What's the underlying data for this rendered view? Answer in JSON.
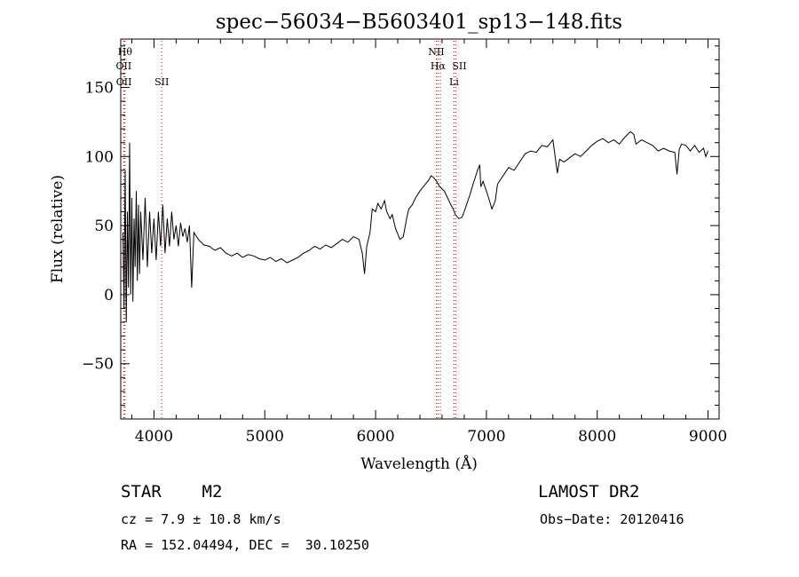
{
  "chart_data": {
    "type": "line",
    "title": "spec−56034−B5603401_sp13−148.fits",
    "xlabel": "Wavelength (Å)",
    "ylabel": "Flux (relative)",
    "xlim": [
      3700,
      9100
    ],
    "ylim": [
      -90,
      185
    ],
    "x_ticks": [
      4000,
      5000,
      6000,
      7000,
      8000,
      9000
    ],
    "x_tick_labels": [
      "4000",
      "5000",
      "6000",
      "7000",
      "8000",
      "9000"
    ],
    "y_ticks": [
      -50,
      0,
      50,
      100,
      150
    ],
    "y_tick_labels": [
      "−50",
      "0",
      "50",
      "100",
      "150"
    ],
    "grid": false,
    "line_color": "#000000",
    "marker_color": "#cc0000",
    "series": [
      {
        "values": [
          [
            3720,
            45
          ],
          [
            3730,
            -10
          ],
          [
            3740,
            90
          ],
          [
            3750,
            -20
          ],
          [
            3760,
            60
          ],
          [
            3770,
            5
          ],
          [
            3780,
            110
          ],
          [
            3790,
            0
          ],
          [
            3800,
            70
          ],
          [
            3810,
            -5
          ],
          [
            3820,
            55
          ],
          [
            3830,
            20
          ],
          [
            3840,
            75
          ],
          [
            3850,
            10
          ],
          [
            3860,
            65
          ],
          [
            3870,
            15
          ],
          [
            3880,
            60
          ],
          [
            3900,
            25
          ],
          [
            3920,
            70
          ],
          [
            3940,
            20
          ],
          [
            3960,
            60
          ],
          [
            3980,
            30
          ],
          [
            4000,
            55
          ],
          [
            4020,
            25
          ],
          [
            4040,
            60
          ],
          [
            4060,
            35
          ],
          [
            4080,
            65
          ],
          [
            4100,
            30
          ],
          [
            4120,
            55
          ],
          [
            4140,
            35
          ],
          [
            4160,
            60
          ],
          [
            4180,
            40
          ],
          [
            4200,
            50
          ],
          [
            4220,
            35
          ],
          [
            4240,
            52
          ],
          [
            4260,
            42
          ],
          [
            4280,
            48
          ],
          [
            4300,
            38
          ],
          [
            4320,
            50
          ],
          [
            4340,
            5
          ],
          [
            4360,
            45
          ],
          [
            4400,
            40
          ],
          [
            4450,
            36
          ],
          [
            4500,
            35
          ],
          [
            4550,
            32
          ],
          [
            4600,
            34
          ],
          [
            4650,
            30
          ],
          [
            4700,
            28
          ],
          [
            4750,
            30
          ],
          [
            4800,
            27
          ],
          [
            4850,
            29
          ],
          [
            4900,
            28
          ],
          [
            4950,
            26
          ],
          [
            5000,
            25
          ],
          [
            5050,
            27
          ],
          [
            5100,
            24
          ],
          [
            5150,
            26
          ],
          [
            5200,
            23
          ],
          [
            5250,
            25
          ],
          [
            5300,
            27
          ],
          [
            5350,
            30
          ],
          [
            5400,
            32
          ],
          [
            5450,
            35
          ],
          [
            5500,
            33
          ],
          [
            5550,
            36
          ],
          [
            5600,
            34
          ],
          [
            5650,
            37
          ],
          [
            5700,
            40
          ],
          [
            5750,
            38
          ],
          [
            5800,
            42
          ],
          [
            5850,
            40
          ],
          [
            5880,
            30
          ],
          [
            5900,
            15
          ],
          [
            5920,
            35
          ],
          [
            5950,
            45
          ],
          [
            5970,
            62
          ],
          [
            6000,
            60
          ],
          [
            6020,
            66
          ],
          [
            6050,
            62
          ],
          [
            6080,
            68
          ],
          [
            6100,
            60
          ],
          [
            6130,
            55
          ],
          [
            6150,
            58
          ],
          [
            6180,
            48
          ],
          [
            6200,
            44
          ],
          [
            6220,
            40
          ],
          [
            6250,
            42
          ],
          [
            6280,
            55
          ],
          [
            6300,
            62
          ],
          [
            6330,
            65
          ],
          [
            6360,
            70
          ],
          [
            6400,
            75
          ],
          [
            6450,
            80
          ],
          [
            6480,
            83
          ],
          [
            6500,
            86
          ],
          [
            6520,
            85
          ],
          [
            6550,
            82
          ],
          [
            6580,
            78
          ],
          [
            6620,
            75
          ],
          [
            6650,
            70
          ],
          [
            6680,
            65
          ],
          [
            6700,
            62
          ],
          [
            6720,
            58
          ],
          [
            6750,
            55
          ],
          [
            6780,
            56
          ],
          [
            6800,
            60
          ],
          [
            6820,
            65
          ],
          [
            6850,
            72
          ],
          [
            6880,
            80
          ],
          [
            6900,
            85
          ],
          [
            6920,
            90
          ],
          [
            6940,
            94
          ],
          [
            6950,
            78
          ],
          [
            6970,
            82
          ],
          [
            7000,
            75
          ],
          [
            7020,
            70
          ],
          [
            7050,
            62
          ],
          [
            7080,
            68
          ],
          [
            7100,
            80
          ],
          [
            7150,
            86
          ],
          [
            7200,
            92
          ],
          [
            7250,
            90
          ],
          [
            7300,
            96
          ],
          [
            7350,
            102
          ],
          [
            7400,
            104
          ],
          [
            7450,
            103
          ],
          [
            7500,
            108
          ],
          [
            7550,
            107
          ],
          [
            7600,
            112
          ],
          [
            7640,
            88
          ],
          [
            7660,
            98
          ],
          [
            7700,
            96
          ],
          [
            7750,
            99
          ],
          [
            7800,
            102
          ],
          [
            7850,
            100
          ],
          [
            7900,
            104
          ],
          [
            7950,
            108
          ],
          [
            8000,
            111
          ],
          [
            8050,
            113
          ],
          [
            8100,
            110
          ],
          [
            8150,
            112
          ],
          [
            8200,
            109
          ],
          [
            8250,
            114
          ],
          [
            8300,
            118
          ],
          [
            8330,
            116
          ],
          [
            8350,
            109
          ],
          [
            8400,
            112
          ],
          [
            8450,
            110
          ],
          [
            8500,
            108
          ],
          [
            8550,
            104
          ],
          [
            8600,
            106
          ],
          [
            8650,
            104
          ],
          [
            8700,
            103
          ],
          [
            8720,
            87
          ],
          [
            8740,
            105
          ],
          [
            8760,
            109
          ],
          [
            8800,
            108
          ],
          [
            8840,
            104
          ],
          [
            8880,
            108
          ],
          [
            8920,
            103
          ],
          [
            8960,
            106
          ],
          [
            8980,
            100
          ],
          [
            9000,
            104
          ]
        ]
      }
    ],
    "lines": [
      {
        "x": 3739,
        "labels": [
          "Hθ"
        ]
      },
      {
        "x": 3727,
        "labels": [
          "OII"
        ]
      },
      {
        "x": 3729,
        "labels": [
          "OII"
        ]
      },
      {
        "x": 4070,
        "labels": [
          "SII"
        ]
      },
      {
        "x": 6548,
        "labels": [
          "NII"
        ]
      },
      {
        "x": 6563,
        "labels": [
          "Hα"
        ]
      },
      {
        "x": 6584,
        "labels": []
      },
      {
        "x": 6708,
        "labels": [
          "Li"
        ]
      },
      {
        "x": 6724,
        "labels": [
          "SII"
        ]
      }
    ]
  },
  "info": {
    "class_line": "STAR    M2",
    "survey": "LAMOST DR2",
    "cz_line": "cz = 7.9 ± 10.8 km/s",
    "obs_date": "Obs−Date: 20120416",
    "coord_line": "RA = 152.04494, DEC =  30.10250"
  }
}
